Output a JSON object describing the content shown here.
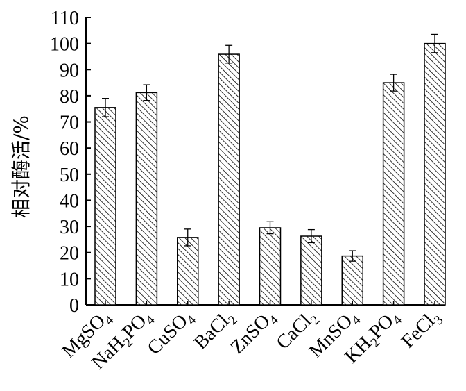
{
  "chart_data": {
    "type": "bar",
    "title": "",
    "xlabel": "",
    "ylabel": "相对酶活/%",
    "ylim": [
      0,
      110
    ],
    "yticks": [
      0,
      10,
      20,
      30,
      40,
      50,
      60,
      70,
      80,
      90,
      100,
      110
    ],
    "grid": false,
    "bar_pattern": "diagonal-hatch",
    "colors": {
      "bar_fill": "#ffffff",
      "hatch": "#000000",
      "axis": "#000000"
    },
    "categories": [
      {
        "base": "MgSO",
        "sub": "4",
        "mid": "",
        "sub2": ""
      },
      {
        "base": "NaH",
        "sub": "2",
        "mid": "PO",
        "sub2": "4"
      },
      {
        "base": "CuSO",
        "sub": "4",
        "mid": "",
        "sub2": ""
      },
      {
        "base": "BaCl",
        "sub": "2",
        "mid": "",
        "sub2": ""
      },
      {
        "base": "ZnSO",
        "sub": "4",
        "mid": "",
        "sub2": ""
      },
      {
        "base": "CaCl",
        "sub": "2",
        "mid": "",
        "sub2": ""
      },
      {
        "base": "MnSO",
        "sub": "4",
        "mid": "",
        "sub2": ""
      },
      {
        "base": "KH",
        "sub": "2",
        "mid": "PO",
        "sub2": "4"
      },
      {
        "base": "FeCl",
        "sub": "3",
        "mid": "",
        "sub2": ""
      }
    ],
    "values": [
      75.5,
      81.2,
      25.8,
      95.9,
      29.5,
      26.3,
      18.7,
      85.0,
      100.0
    ],
    "errors": [
      3.5,
      3.0,
      3.2,
      3.4,
      2.3,
      2.5,
      2.0,
      3.2,
      3.5
    ]
  }
}
